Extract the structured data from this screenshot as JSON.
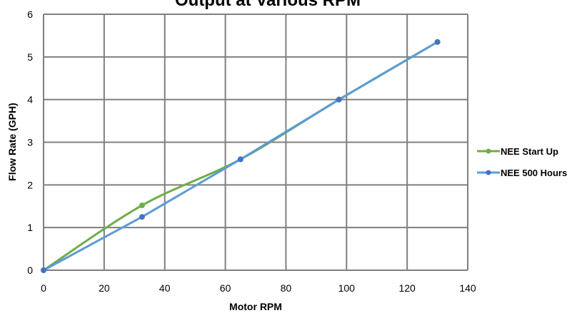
{
  "chart_data": {
    "type": "line",
    "title": "Output at Various RPM",
    "xlabel": "Motor RPM",
    "ylabel": "Flow Rate (GPH)",
    "xlim": [
      0,
      140
    ],
    "ylim": [
      0,
      6
    ],
    "xticks": [
      0,
      20,
      40,
      60,
      80,
      100,
      120,
      140
    ],
    "yticks": [
      0,
      1,
      2,
      3,
      4,
      5,
      6
    ],
    "grid": true,
    "legend_position": "right",
    "series": [
      {
        "name": "NEE Start Up",
        "color": "#70ad47",
        "smooth": true,
        "points": [
          [
            0,
            0
          ],
          [
            32.5,
            1.52
          ],
          [
            65,
            2.6
          ],
          [
            97.5,
            4.0
          ],
          [
            130,
            5.35
          ]
        ]
      },
      {
        "name": "NEE 500 Hours",
        "color": "#5b9bd5",
        "marker_color": "#4472c4",
        "smooth": false,
        "points": [
          [
            0,
            0
          ],
          [
            32.5,
            1.25
          ],
          [
            65,
            2.6
          ],
          [
            97.5,
            4.0
          ],
          [
            130,
            5.35
          ]
        ]
      }
    ]
  }
}
